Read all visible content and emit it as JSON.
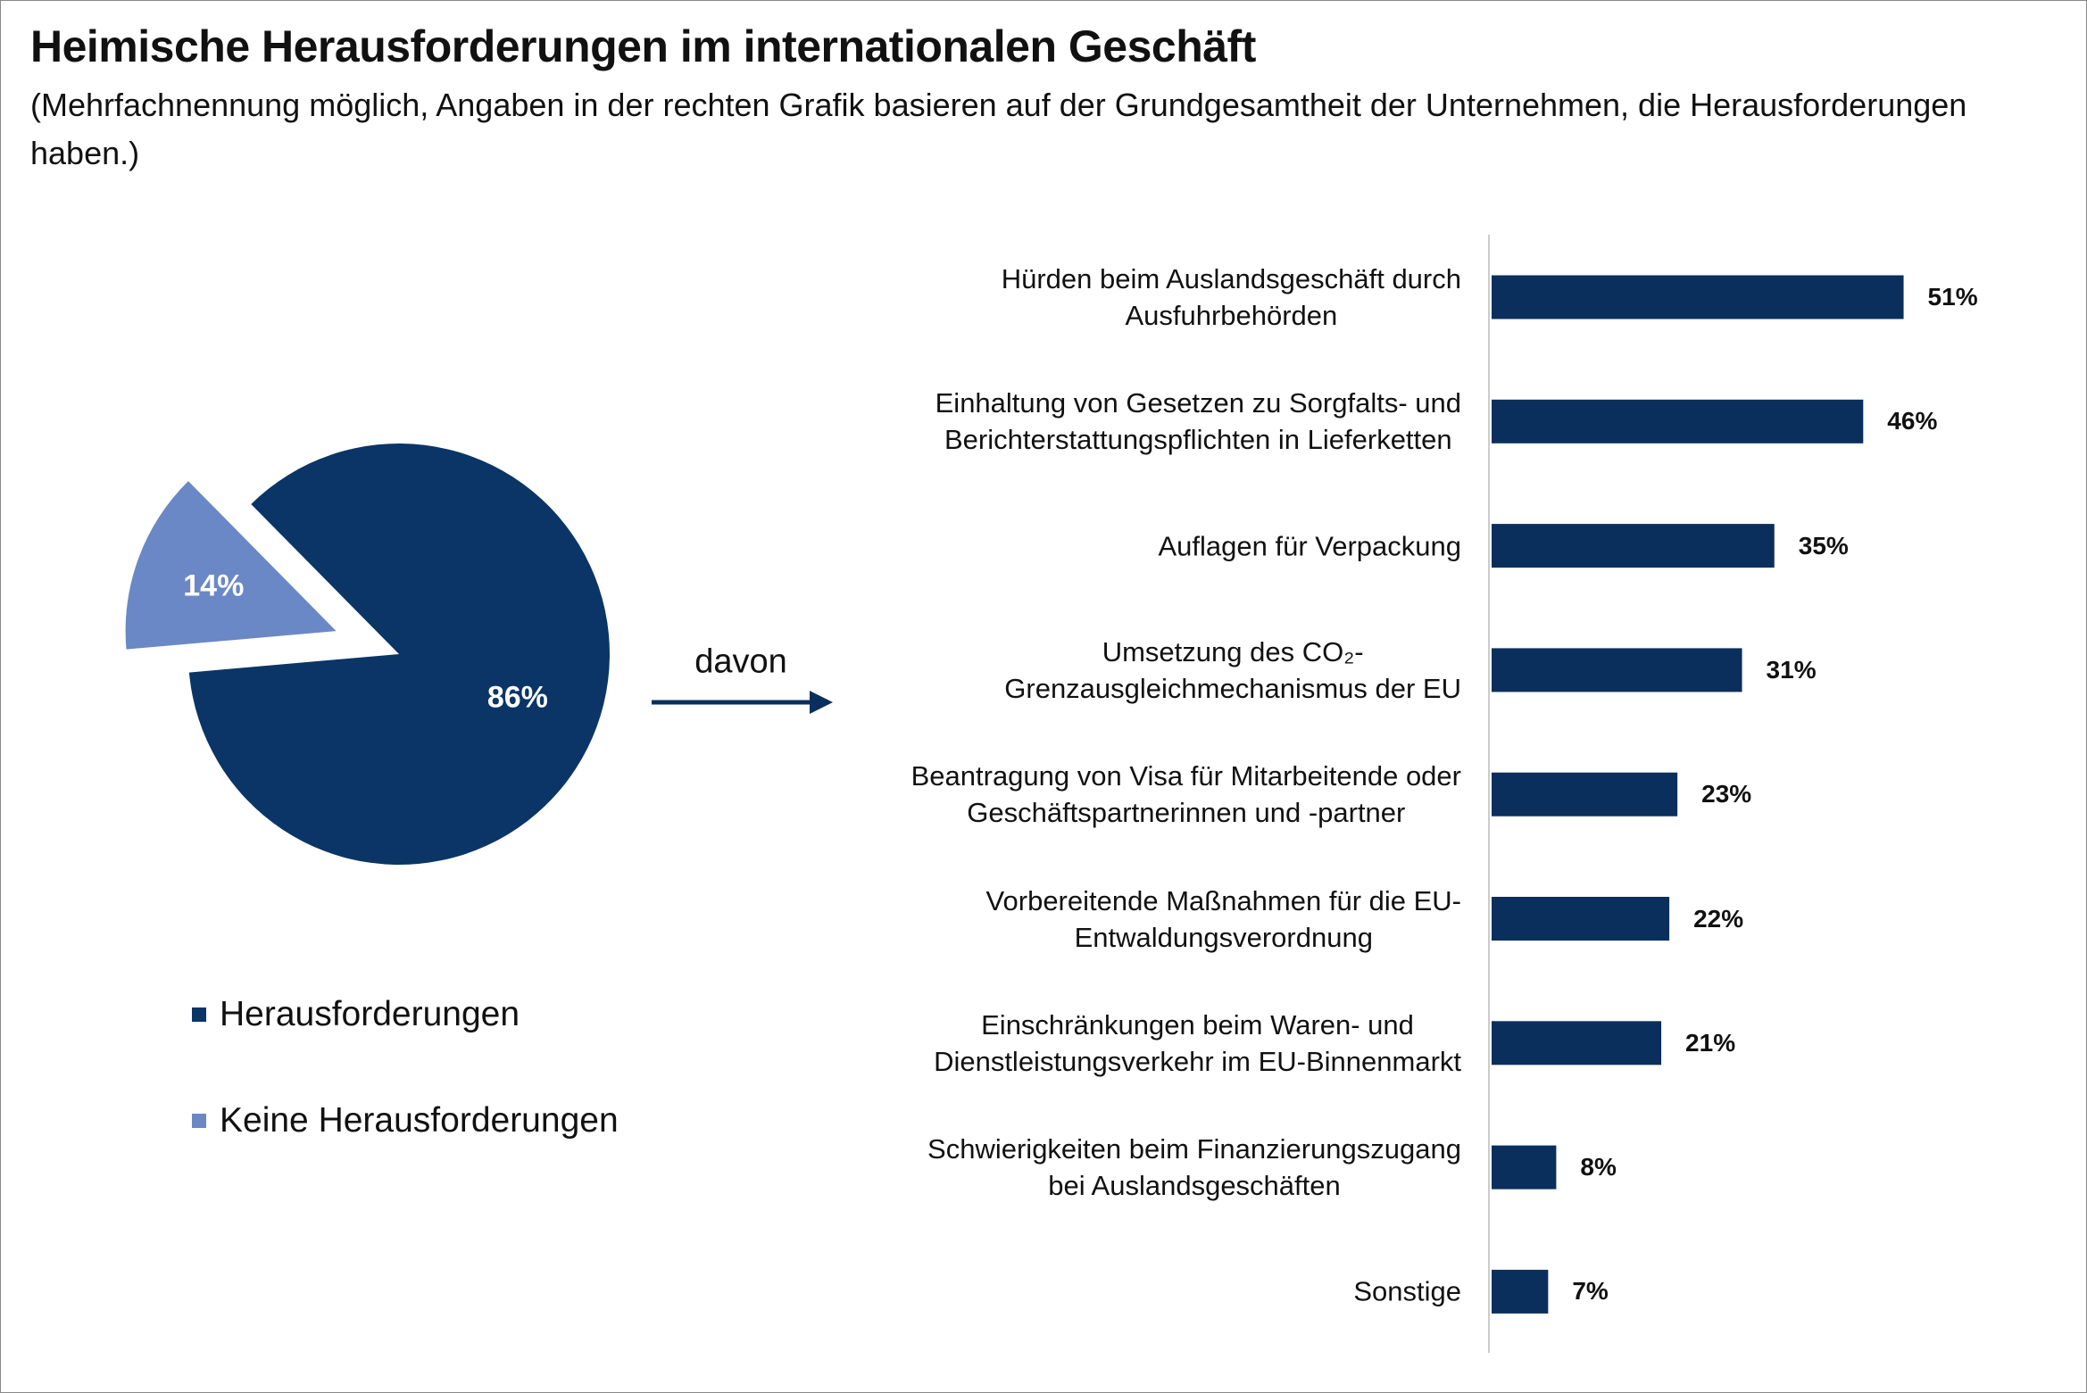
{
  "title": "Heimische Herausforderungen im internationalen Geschäft",
  "subtitle": "(Mehrfachnennung möglich, Angaben in der rechten Grafik basieren auf der Grundgesamtheit der Unternehmen, die Herausforderungen haben.)",
  "chart_data": [
    {
      "type": "pie",
      "categories": [
        "Herausforderungen",
        "Keine Herausforderungen"
      ],
      "values": [
        86,
        14
      ],
      "value_labels": [
        "86%",
        "14%"
      ],
      "colors": [
        "#0a3566",
        "#6a88c6"
      ]
    },
    {
      "type": "bar",
      "annotation": "davon",
      "categories": [
        "Hürden beim Auslandsgeschäft durch\nAusfuhrbehörden",
        "Einhaltung von Gesetzen zu Sorgfalts- und\nBerichterstattungspflichten in Lieferketten",
        "Auflagen für Verpackung",
        "Umsetzung des CO₂-\nGrenzausgleichmechanismus der EU",
        "Beantragung von Visa für Mitarbeitende oder\nGeschäftspartnerinnen und -partner",
        "Vorbereitende Maßnahmen für die EU-\nEntwaldungsverordnung",
        "Einschränkungen beim Waren- und\nDienstleistungsverkehr im EU-Binnenmarkt",
        "Schwierigkeiten beim Finanzierungszugang\nbei Auslandsgeschäften",
        "Sonstige"
      ],
      "values": [
        51,
        46,
        35,
        31,
        23,
        22,
        21,
        8,
        7
      ],
      "value_labels": [
        "51%",
        "46%",
        "35%",
        "31%",
        "23%",
        "22%",
        "21%",
        "8%",
        "7%"
      ],
      "color": "#0a2f5c"
    }
  ]
}
